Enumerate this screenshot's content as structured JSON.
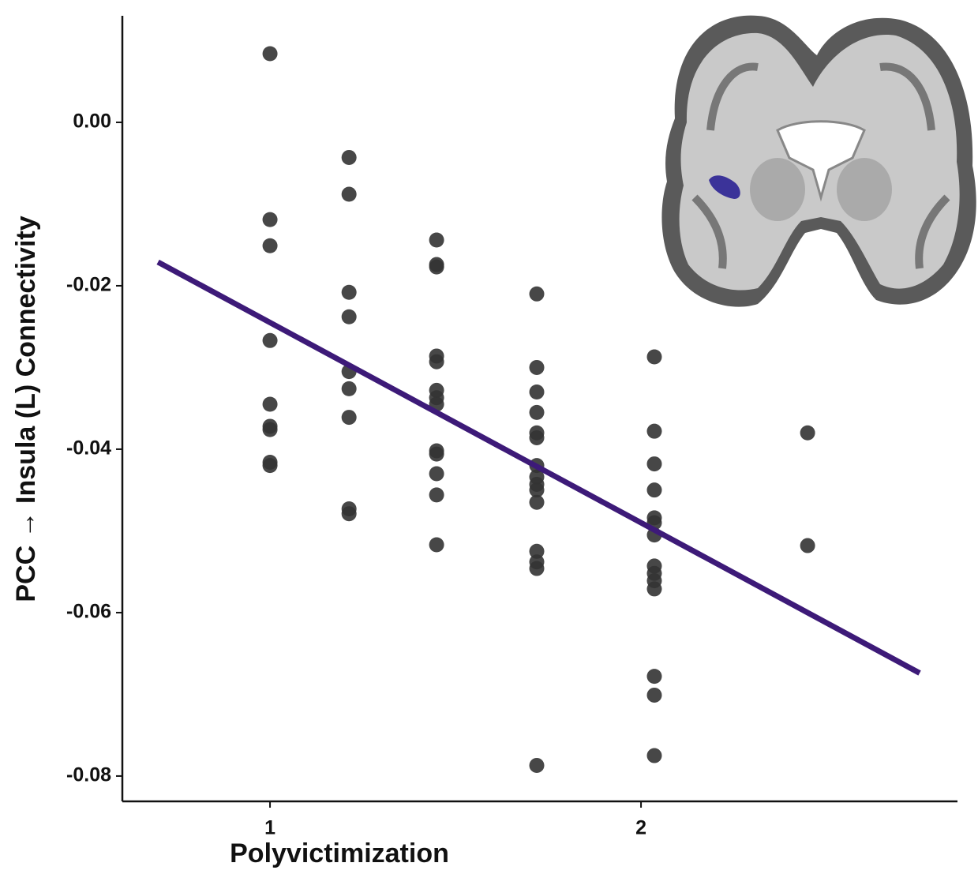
{
  "chart_data": {
    "type": "scatter",
    "x_label": "Polyvictimization",
    "y_label": "PCC → Insula (L) Connectivity",
    "x": [
      1,
      1,
      1,
      1,
      1,
      1,
      1,
      1,
      1,
      1.213,
      1.213,
      1.213,
      1.213,
      1.213,
      1.213,
      1.213,
      1.213,
      1.213,
      1.449,
      1.449,
      1.449,
      1.449,
      1.449,
      1.449,
      1.449,
      1.449,
      1.449,
      1.449,
      1.449,
      1.449,
      1.449,
      1.719,
      1.719,
      1.719,
      1.719,
      1.719,
      1.719,
      1.719,
      1.719,
      1.719,
      1.719,
      1.719,
      1.719,
      1.719,
      1.719,
      1.719,
      2.036,
      2.036,
      2.036,
      2.036,
      2.036,
      2.036,
      2.036,
      2.036,
      2.036,
      2.036,
      2.036,
      2.036,
      2.036,
      2.036,
      2.449,
      2.449
    ],
    "values": [
      0.0084,
      -0.0119,
      -0.0151,
      -0.0267,
      -0.0345,
      -0.0372,
      -0.0376,
      -0.0416,
      -0.042,
      -0.0043,
      -0.0088,
      -0.0208,
      -0.0238,
      -0.0305,
      -0.0326,
      -0.0361,
      -0.0473,
      -0.0479,
      -0.0144,
      -0.0174,
      -0.0177,
      -0.0286,
      -0.0293,
      -0.0328,
      -0.0337,
      -0.0345,
      -0.0402,
      -0.0406,
      -0.043,
      -0.0456,
      -0.0517,
      -0.021,
      -0.03,
      -0.033,
      -0.0355,
      -0.038,
      -0.0386,
      -0.042,
      -0.0434,
      -0.0443,
      -0.045,
      -0.0465,
      -0.0525,
      -0.0538,
      -0.0546,
      -0.0787,
      -0.0287,
      -0.0378,
      -0.0418,
      -0.045,
      -0.0484,
      -0.049,
      -0.0505,
      -0.0543,
      -0.0552,
      -0.0561,
      -0.0571,
      -0.0678,
      -0.0701,
      -0.0775,
      -0.038,
      -0.0518
    ],
    "color": "#333333",
    "fit_line": {
      "x": [
        0.698,
        2.751
      ],
      "values": [
        -0.0171,
        -0.0674
      ],
      "color": "#3d1a78"
    },
    "xlim": [
      0.602,
      2.853
    ],
    "ylim": [
      -0.0831,
      0.01304
    ],
    "xticks": [
      1,
      2
    ],
    "yticks": [
      {
        "value": 0,
        "label": "0.00"
      },
      {
        "value": -0.02,
        "label": "-0.02"
      },
      {
        "value": -0.04,
        "label": "-0.04"
      },
      {
        "value": -0.06,
        "label": "-0.06"
      },
      {
        "value": -0.08,
        "label": "-0.08"
      }
    ],
    "grid": false
  }
}
